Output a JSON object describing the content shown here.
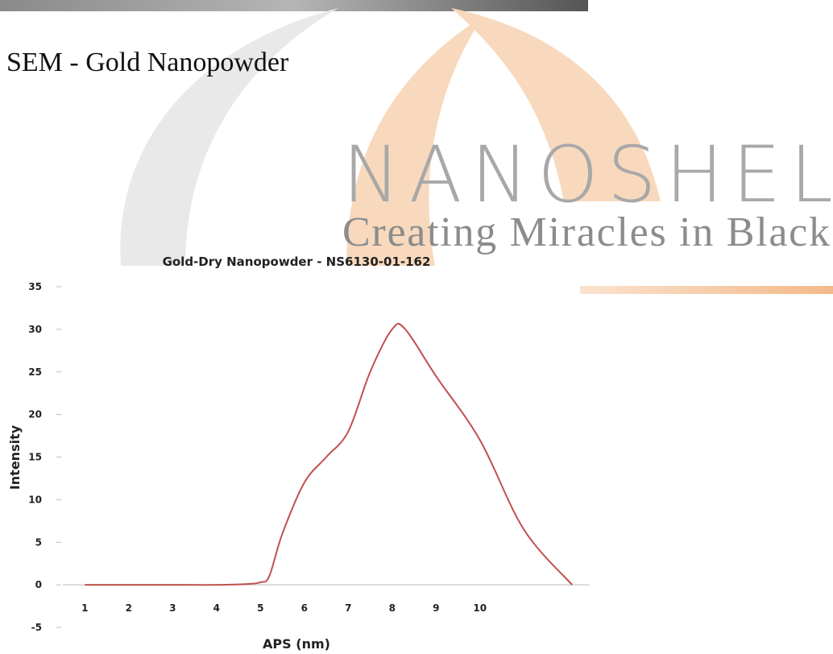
{
  "heading": "SEM - Gold Nanopowder",
  "watermark": {
    "brand": "NANOSHEL",
    "tagline": "Creating Miracles in Black"
  },
  "chart_data": {
    "type": "line",
    "title": "Gold-Dry Nanopowder - NS6130-01-162",
    "x_label": "APS (nm)",
    "y_label": "Intensity",
    "x": [
      1,
      2,
      3,
      4,
      4.7,
      5,
      5.2,
      5.5,
      6,
      6.5,
      7,
      7.5,
      8,
      8.3,
      9,
      10,
      11,
      12.1
    ],
    "series": [
      {
        "color": "#c0504d",
        "values": [
          0,
          0,
          0,
          0,
          0.1,
          0.3,
          1,
          6,
          12,
          15,
          18,
          25,
          30,
          30,
          24.5,
          17,
          6.5,
          0
        ]
      }
    ],
    "xlim": [
      0.5,
      12.5
    ],
    "xticks": [
      1,
      2,
      3,
      4,
      5,
      6,
      7,
      8,
      9,
      10
    ],
    "ylim": [
      -5,
      35
    ],
    "yticks": [
      -5,
      0,
      5,
      10,
      15,
      20,
      25,
      30,
      35
    ]
  }
}
